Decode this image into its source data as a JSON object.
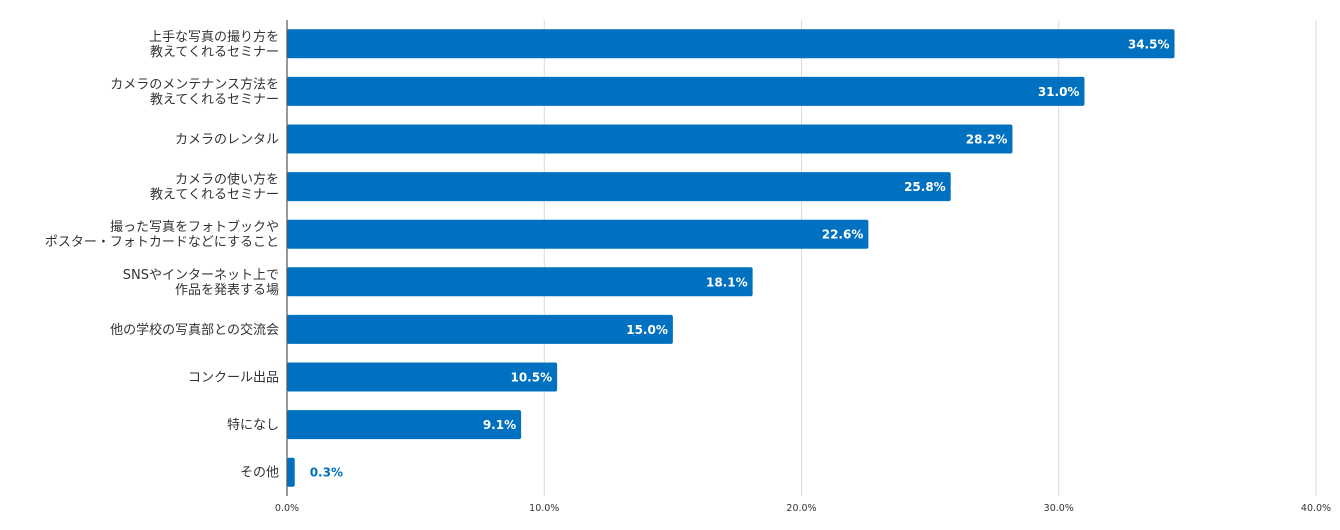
{
  "chart_data": {
    "type": "bar",
    "orientation": "horizontal",
    "title": "",
    "xlabel": "",
    "ylabel": "",
    "categories": [
      [
        "上手な写真の撮り方を",
        "教えてくれるセミナー"
      ],
      [
        "カメラのメンテナンス方法を",
        "教えてくれるセミナー"
      ],
      [
        "カメラのレンタル"
      ],
      [
        "カメラの使い方を",
        "教えてくれるセミナー"
      ],
      [
        "撮った写真をフォトブックや",
        "ポスター・フォトカードなどにすること"
      ],
      [
        "SNSやインターネット上で",
        "作品を発表する場"
      ],
      [
        "他の学校の写真部との交流会"
      ],
      [
        "コンクール出品"
      ],
      [
        "特になし"
      ],
      [
        "その他"
      ]
    ],
    "values": [
      34.5,
      31.0,
      28.2,
      25.8,
      22.6,
      18.1,
      15.0,
      10.5,
      9.1,
      0.3
    ],
    "value_labels": [
      "34.5%",
      "31.0%",
      "28.2%",
      "25.8%",
      "22.6%",
      "18.1%",
      "15.0%",
      "10.5%",
      "9.1%",
      "0.3%"
    ],
    "xlim": [
      0,
      40
    ],
    "ticks": [
      0,
      10,
      20,
      30,
      40
    ],
    "tick_labels": [
      "0.0%",
      "10.0%",
      "20.0%",
      "30.0%",
      "40.0%"
    ],
    "grid": true,
    "legend": "none",
    "colors": {
      "bar": "#0070c0",
      "label_inside": "#ffffff",
      "label_outside": "#0070c0",
      "grid": "#d9d9d9",
      "axis": "#555555"
    }
  }
}
